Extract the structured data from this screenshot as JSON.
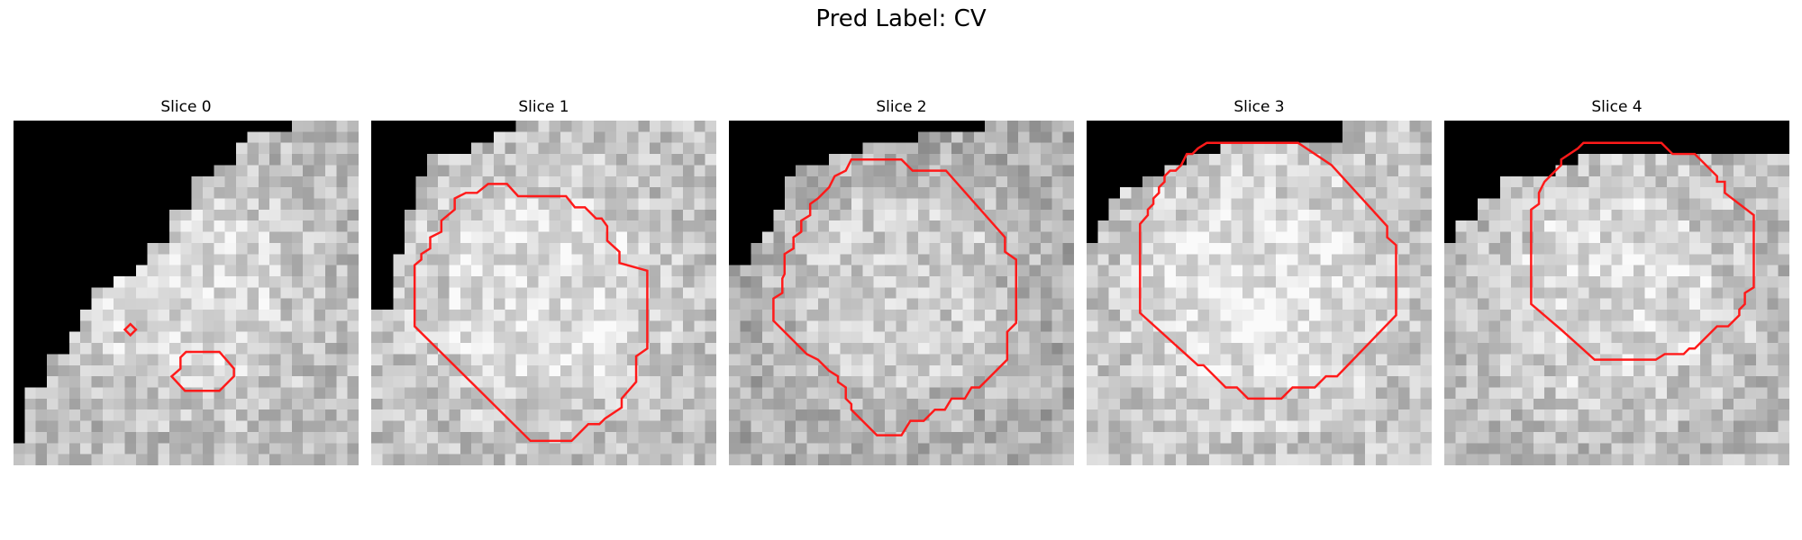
{
  "figure": {
    "title": "Pred Label: CV"
  },
  "colors": {
    "contour": "#ff1a1a",
    "background_mask": "#000000"
  },
  "panels": [
    {
      "title": "Slice 0"
    },
    {
      "title": "Slice 1"
    },
    {
      "title": "Slice 2"
    },
    {
      "title": "Slice 3"
    },
    {
      "title": "Slice 4"
    }
  ]
}
